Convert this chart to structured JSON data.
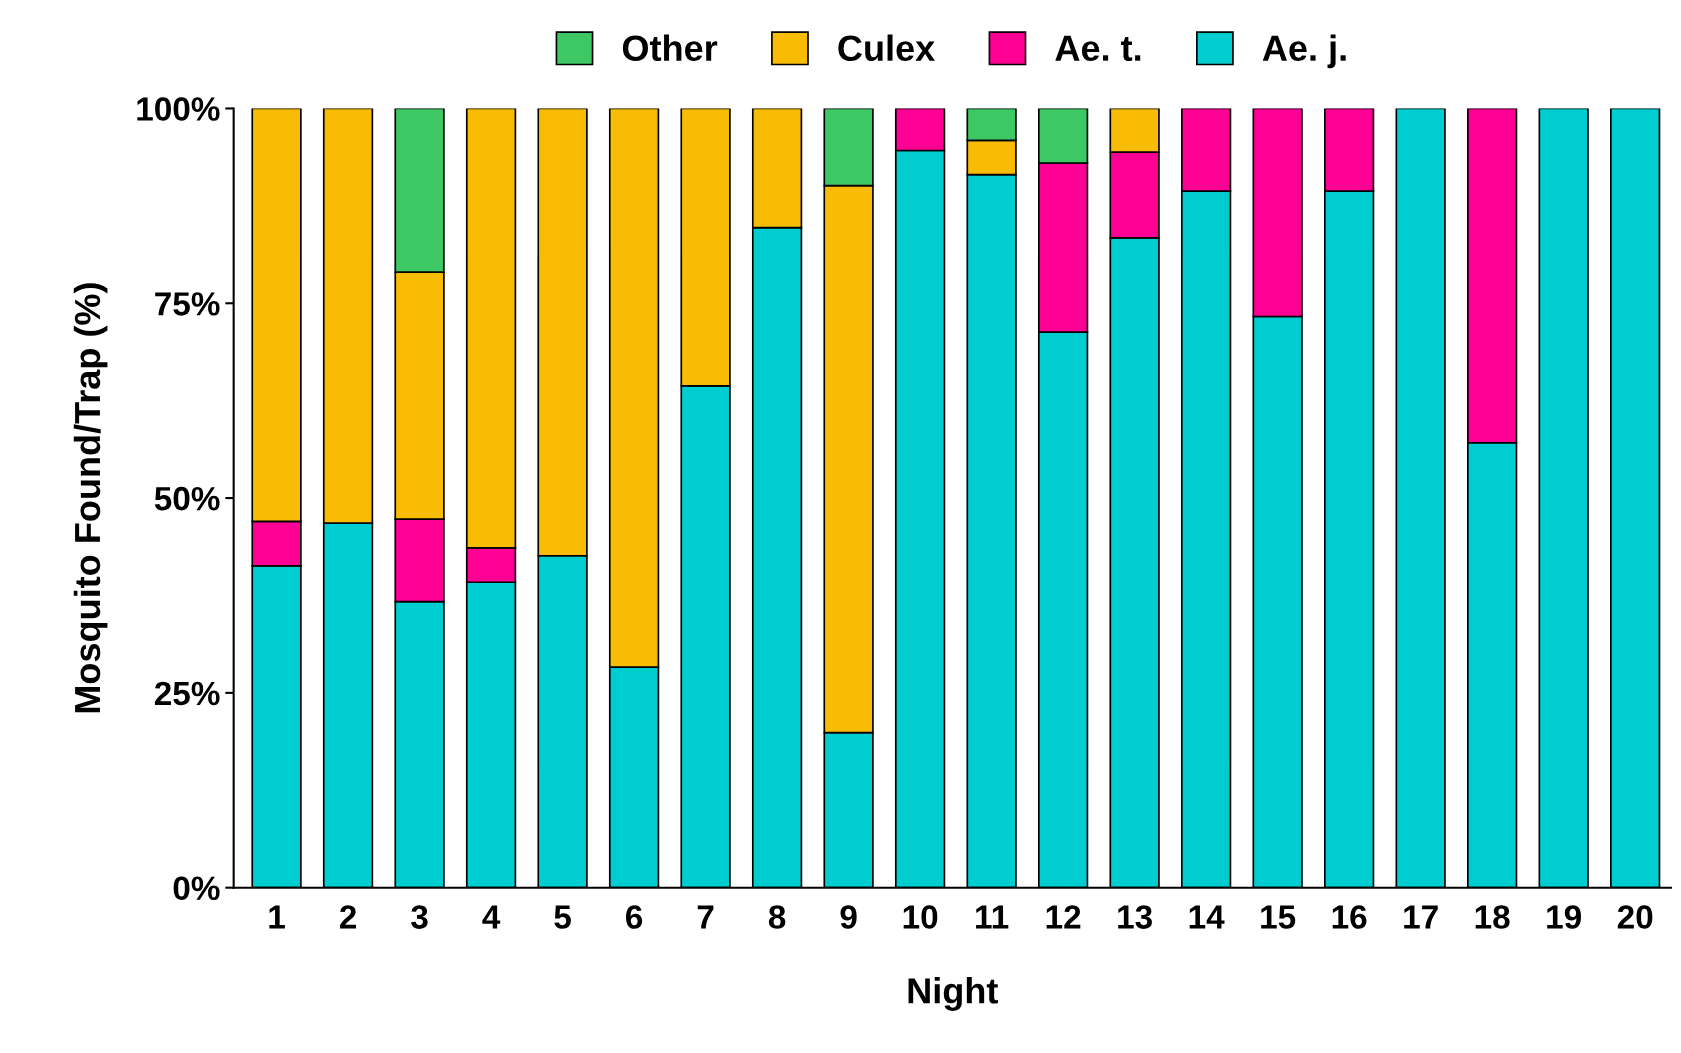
{
  "chart_data": {
    "type": "bar",
    "stacked": true,
    "xlabel": "Night",
    "ylabel": "Mosquito Found/Trap (%)",
    "categories": [
      "1",
      "2",
      "3",
      "4",
      "5",
      "6",
      "7",
      "8",
      "9",
      "10",
      "11",
      "12",
      "13",
      "14",
      "15",
      "16",
      "17",
      "18",
      "19",
      "20"
    ],
    "series": [
      {
        "name": "Ae. j.",
        "color": "#00cdd0",
        "values": [
          41.3,
          46.8,
          36.7,
          39.2,
          42.6,
          28.3,
          64.4,
          84.7,
          19.9,
          94.6,
          91.5,
          71.3,
          83.4,
          89.4,
          73.3,
          89.4,
          100,
          57.1,
          100,
          100
        ]
      },
      {
        "name": "Ae. t.",
        "color": "#ff0095",
        "values": [
          5.7,
          0,
          10.6,
          4.4,
          0,
          0,
          0,
          0,
          0,
          5.4,
          0,
          21.7,
          11.0,
          10.6,
          26.7,
          10.6,
          0,
          42.9,
          0,
          0
        ]
      },
      {
        "name": "Culex",
        "color": "#f9bc05",
        "values": [
          53.0,
          53.2,
          31.7,
          56.4,
          57.4,
          71.7,
          35.6,
          15.3,
          70.2,
          0,
          4.4,
          0,
          5.6,
          0,
          0,
          0,
          0,
          0,
          0,
          0
        ]
      },
      {
        "name": "Other",
        "color": "#3ec865",
        "values": [
          0,
          0,
          21.0,
          0,
          0,
          0,
          0,
          0,
          9.9,
          0,
          4.1,
          7.0,
          0,
          0,
          0,
          0,
          0,
          0,
          0,
          0
        ]
      }
    ],
    "ylim": [
      0,
      100
    ],
    "yticks": [
      {
        "value": 0,
        "label": "0%"
      },
      {
        "value": 25,
        "label": "25%"
      },
      {
        "value": 50,
        "label": "50%"
      },
      {
        "value": 75,
        "label": "75%"
      },
      {
        "value": 100,
        "label": "100%"
      }
    ],
    "legend": "top",
    "grid": false
  }
}
